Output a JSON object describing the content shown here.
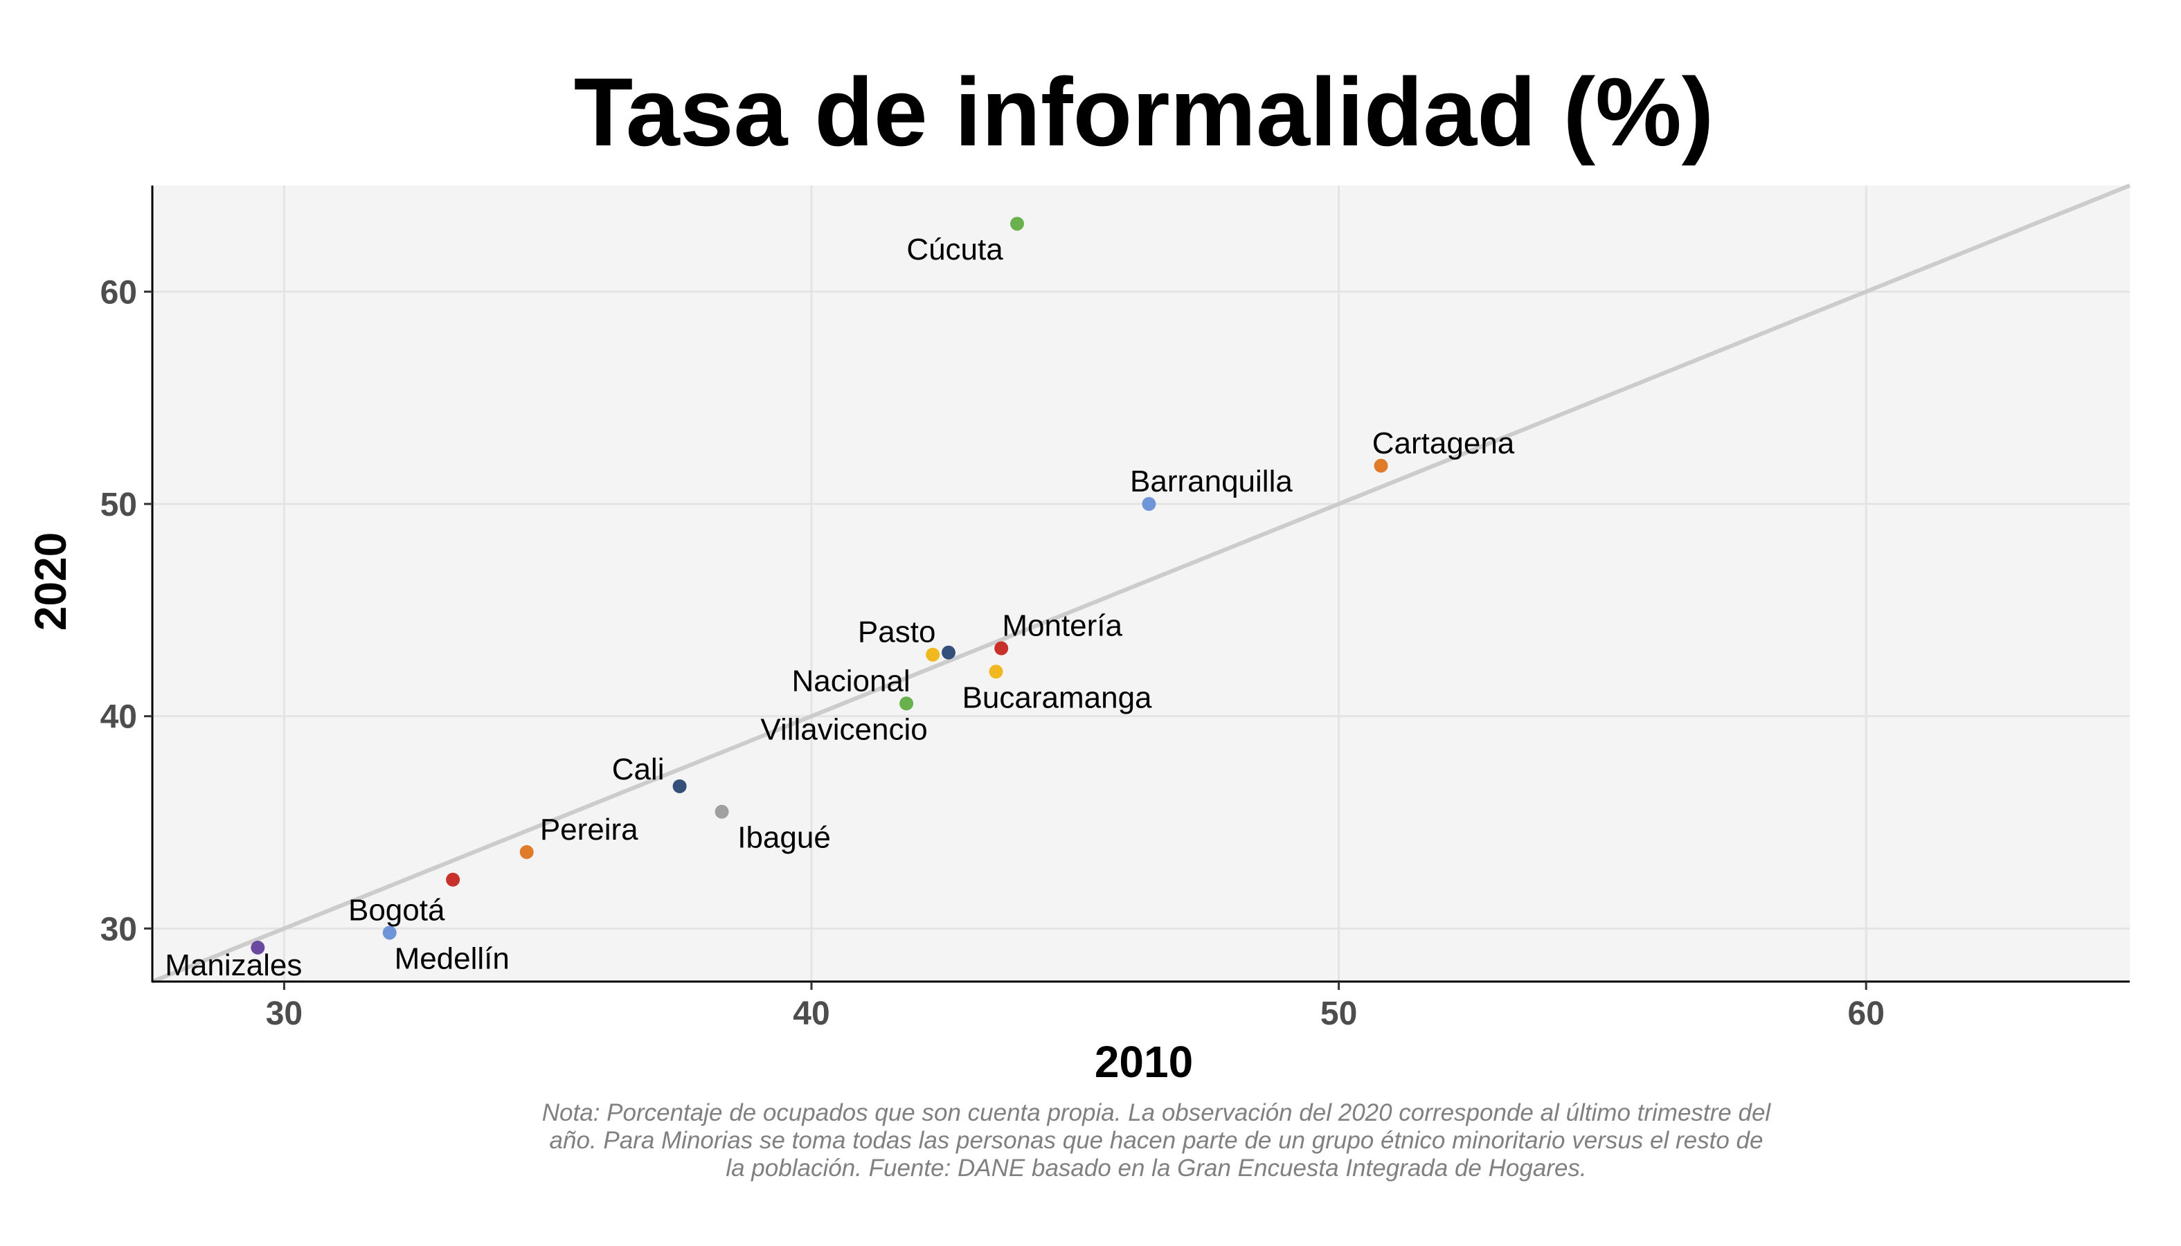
{
  "chart_data": {
    "type": "scatter",
    "title": "Tasa de informalidad (%)",
    "xlabel": "2010",
    "ylabel": "2020",
    "xlim": [
      27.5,
      65
    ],
    "ylim": [
      27.5,
      65
    ],
    "xticks": [
      30,
      40,
      50,
      60
    ],
    "yticks": [
      30,
      40,
      50,
      60
    ],
    "grid": true,
    "reference_line": "y = x",
    "points": [
      {
        "label": "Cúcuta",
        "x": 43.9,
        "y": 63.2,
        "color": "#6ab04c"
      },
      {
        "label": "Cartagena",
        "x": 50.8,
        "y": 51.8,
        "color": "#e07b2a"
      },
      {
        "label": "Barranquilla",
        "x": 46.4,
        "y": 50.0,
        "color": "#7094d8"
      },
      {
        "label": "Montería",
        "x": 43.6,
        "y": 43.2,
        "color": "#c8302a"
      },
      {
        "label": "Pasto",
        "x": 42.3,
        "y": 42.9,
        "color": "#f2b820"
      },
      {
        "label": "",
        "x": 42.6,
        "y": 43.0,
        "color": "#34507a"
      },
      {
        "label": "Bucaramanga",
        "x": 43.5,
        "y": 42.1,
        "color": "#f2b820"
      },
      {
        "label": "Nacional",
        "x": 41.8,
        "y": 40.6,
        "color": "#6ab04c"
      },
      {
        "label": "Villavicencio",
        "x": 41.8,
        "y": 40.6,
        "color": null
      },
      {
        "label": "Cali",
        "x": 37.5,
        "y": 36.7,
        "color": "#34507a"
      },
      {
        "label": "Ibagué",
        "x": 38.3,
        "y": 35.5,
        "color": "#a0a0a0"
      },
      {
        "label": "Pereira",
        "x": 34.6,
        "y": 33.6,
        "color": "#e07b2a"
      },
      {
        "label": "",
        "x": 33.2,
        "y": 32.3,
        "color": "#c8302a"
      },
      {
        "label": "Bogotá",
        "x": 32.0,
        "y": 29.8,
        "color": "#7094d8"
      },
      {
        "label": "Medellín",
        "x": 32.0,
        "y": 29.8,
        "color": null
      },
      {
        "label": "Manizales",
        "x": 29.5,
        "y": 29.1,
        "color": "#6a4aa0"
      }
    ]
  },
  "note": "Nota: Porcentaje de ocupados que son cuenta propia. La observación del 2020 corresponde al último trimestre del año. Para Minorias se toma todas las personas que hacen parte de un grupo étnico minoritario versus el resto de la población. Fuente: DANE basado en la Gran Encuesta Integrada de Hogares."
}
